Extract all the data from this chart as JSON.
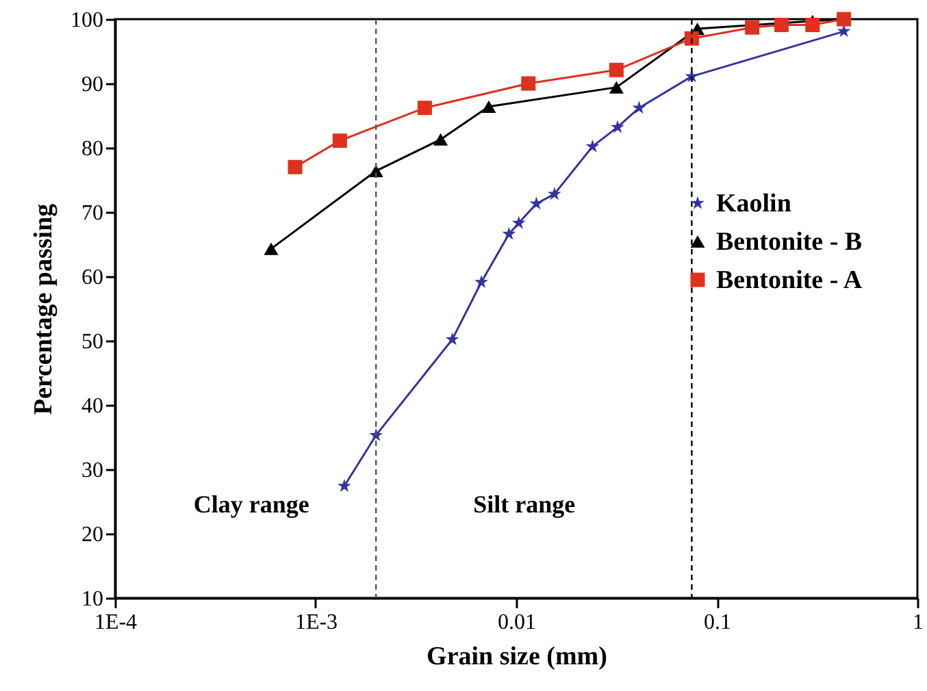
{
  "chart_data": {
    "type": "line",
    "xlabel": "Grain size (mm)",
    "ylabel": "Percentage passing",
    "log": "x",
    "xlim": [
      0.0001,
      1
    ],
    "xticks": [
      {
        "value": 0.0001,
        "label": "1E-4"
      },
      {
        "value": 0.001,
        "label": "1E-3"
      },
      0.01,
      0.1,
      1
    ],
    "ylim": [
      10,
      100
    ],
    "yticks": [
      10,
      20,
      30,
      40,
      50,
      60,
      70,
      80,
      90,
      100
    ],
    "grid": false,
    "legend": "right",
    "line_style": "solid",
    "series": [
      {
        "name": "Kaolin",
        "color": "#3333a0",
        "marker": "star",
        "x": [
          0.00139,
          0.002,
          0.0048,
          0.0067,
          0.0092,
          0.0103,
          0.0126,
          0.0155,
          0.024,
          0.032,
          0.041,
          0.075,
          0.43
        ],
        "values": [
          27.4,
          35.3,
          50.2,
          59.1,
          66.6,
          68.3,
          71.3,
          72.8,
          80.2,
          83.2,
          86.2,
          91.1,
          98.1
        ]
      },
      {
        "name": "Bentonite - B",
        "color": "#000000",
        "marker": "triangle",
        "x": [
          0.0006,
          0.002,
          0.0042,
          0.0073,
          0.0316,
          0.08,
          0.3,
          0.43
        ],
        "values": [
          64.3,
          76.4,
          81.3,
          86.4,
          89.4,
          98.5,
          99.7,
          100
        ]
      },
      {
        "name": "Bentonite - A",
        "color": "#e0301e",
        "marker": "square",
        "x": [
          0.00079,
          0.00132,
          0.0035,
          0.0115,
          0.0316,
          0.075,
          0.15,
          0.21,
          0.3,
          0.43
        ],
        "values": [
          77.0,
          81.1,
          86.2,
          90.0,
          92.1,
          97.0,
          98.7,
          99.1,
          99.1,
          100
        ]
      }
    ],
    "ref_lines": [
      {
        "axis": "x",
        "value": 0.002,
        "color": "#555555",
        "line_style": "dashed"
      },
      {
        "axis": "x",
        "value": 0.075,
        "color": "#000000",
        "line_style": "dashed"
      }
    ],
    "annotations": [
      "Clay range",
      "Silt range"
    ]
  }
}
